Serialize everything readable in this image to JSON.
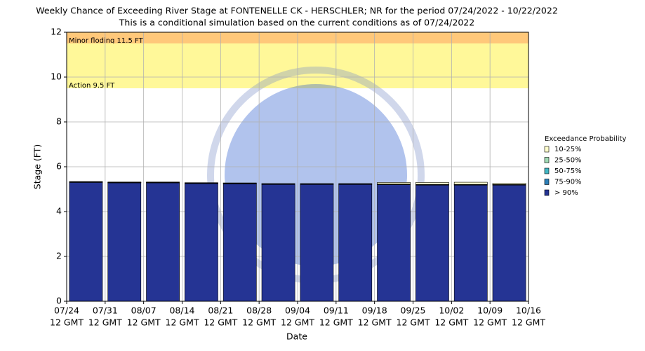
{
  "chart_data": {
    "type": "bar",
    "title": "Weekly Chance of Exceeding River Stage at FONTENELLE CK - HERSCHLER; NR for the period 07/24/2022 - 10/22/2022",
    "subtitle": "This is a conditional simulation based on the current conditions as of 07/24/2022",
    "x_label": "Date",
    "y_label": "Stage (FT)",
    "ylim": [
      0,
      12
    ],
    "yticks": [
      0,
      2,
      4,
      6,
      8,
      10,
      12
    ],
    "grid": true,
    "xticks": [
      {
        "date": "07/24",
        "time": "12 GMT"
      },
      {
        "date": "07/31",
        "time": "12 GMT"
      },
      {
        "date": "08/07",
        "time": "12 GMT"
      },
      {
        "date": "08/14",
        "time": "12 GMT"
      },
      {
        "date": "08/21",
        "time": "12 GMT"
      },
      {
        "date": "08/28",
        "time": "12 GMT"
      },
      {
        "date": "09/04",
        "time": "12 GMT"
      },
      {
        "date": "09/11",
        "time": "12 GMT"
      },
      {
        "date": "09/18",
        "time": "12 GMT"
      },
      {
        "date": "09/25",
        "time": "12 GMT"
      },
      {
        "date": "10/02",
        "time": "12 GMT"
      },
      {
        "date": "10/09",
        "time": "12 GMT"
      },
      {
        "date": "10/16",
        "time": "12 GMT"
      }
    ],
    "flood_levels": [
      {
        "label": "Minor floding 11.5 FT",
        "value": 11.5,
        "color": "#ffc87a"
      },
      {
        "label": "Action 9.5 FT",
        "value": 9.5,
        "color": "#fff899"
      }
    ],
    "legend_title": "Exceedance Probability",
    "series": [
      {
        "name": "10-25%",
        "color": "#ffffcc",
        "values": [
          0.01,
          0.01,
          0.01,
          0.01,
          0.02,
          0.01,
          0.01,
          0.01,
          0.07,
          0.09,
          0.1,
          0.05
        ]
      },
      {
        "name": "25-50%",
        "color": "#a1dab4",
        "values": [
          0.01,
          0.01,
          0.01,
          0.01,
          0.01,
          0.01,
          0.01,
          0.01,
          0.01,
          0.01,
          0.01,
          0.01
        ]
      },
      {
        "name": "50-75%",
        "color": "#41b6c4",
        "values": [
          0.01,
          0.01,
          0.01,
          0.01,
          0.01,
          0.01,
          0.01,
          0.01,
          0.01,
          0.01,
          0.01,
          0.01
        ]
      },
      {
        "name": "75-90%",
        "color": "#2c7fb8",
        "values": [
          0.01,
          0.01,
          0.01,
          0.01,
          0.01,
          0.01,
          0.01,
          0.01,
          0.01,
          0.01,
          0.01,
          0.01
        ]
      },
      {
        "name": "> 90%",
        "color": "#253494",
        "values": [
          5.3,
          5.28,
          5.28,
          5.25,
          5.23,
          5.21,
          5.21,
          5.21,
          5.2,
          5.18,
          5.18,
          5.18
        ]
      }
    ]
  }
}
